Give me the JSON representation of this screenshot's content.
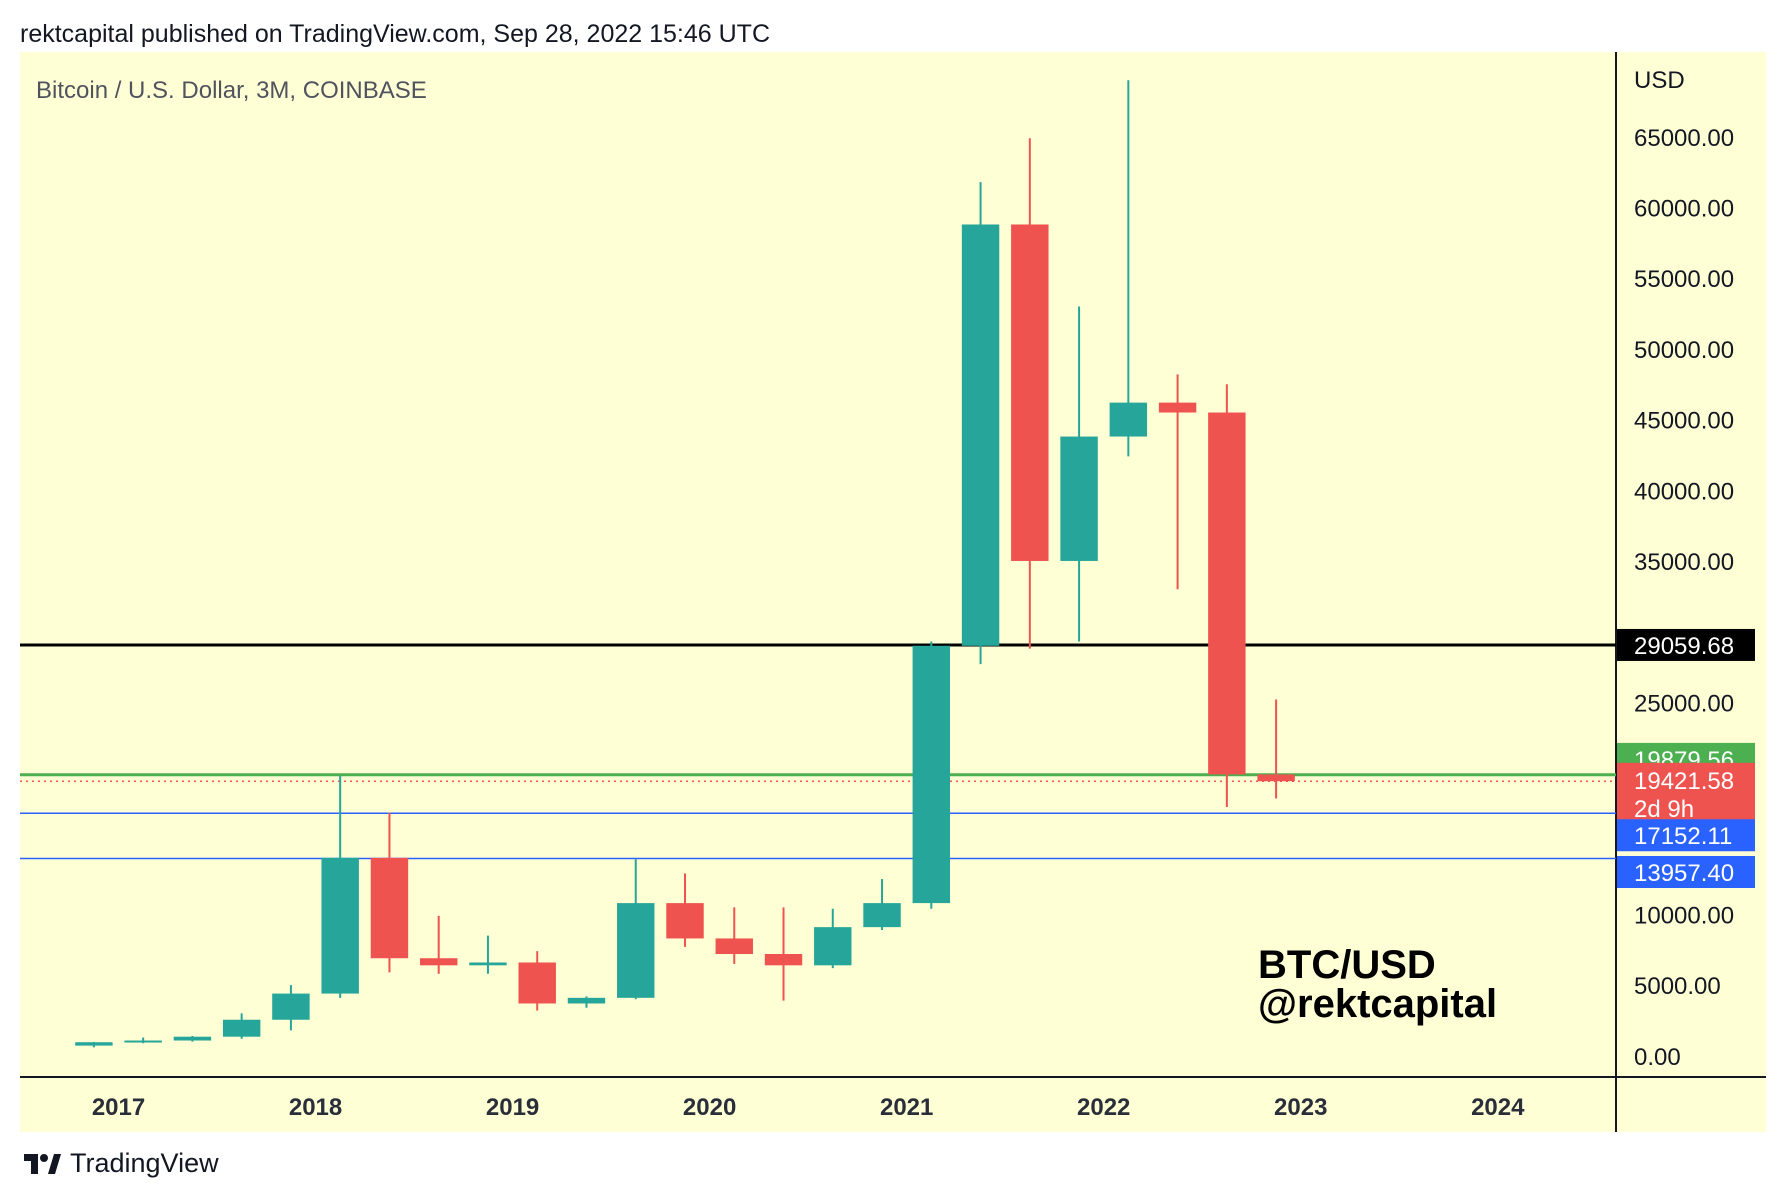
{
  "header": {
    "publish_text": "rektcapital published on TradingView.com, Sep 28, 2022 15:46 UTC"
  },
  "chart": {
    "symbol_title": "Bitcoin / U.S. Dollar, 3M, COINBASE",
    "currency_label": "USD",
    "watermark_line1": "BTC/USD",
    "watermark_line2": "@rektcapital"
  },
  "footer": {
    "brand": "TradingView",
    "logo_icon": "tradingview-logo-icon"
  },
  "colors": {
    "background": "#FFFFD6",
    "up": "#26A69A",
    "down": "#EF5350",
    "black_level": "#000000",
    "green_level": "#4CAF50",
    "blue_level": "#2962FF",
    "last_price_line": "#EF5350"
  },
  "price_labels": {
    "black": "29059.68",
    "green": "19879.56",
    "last": "19421.58",
    "countdown": "2d 9h",
    "blue_upper": "17152.11",
    "blue_lower": "13957.40"
  },
  "chart_data": {
    "type": "candlestick",
    "title": "Bitcoin / U.S. Dollar, 3M, COINBASE",
    "xlabel": "",
    "ylabel": "USD",
    "ylim": [
      -1500,
      71000
    ],
    "grid": false,
    "y_ticks": [
      "0.00",
      "5000.00",
      "10000.00",
      "25000.00",
      "35000.00",
      "40000.00",
      "45000.00",
      "50000.00",
      "55000.00",
      "60000.00",
      "65000.00"
    ],
    "y_tick_values": [
      0,
      5000,
      10000,
      25000,
      35000,
      40000,
      45000,
      50000,
      55000,
      60000,
      65000
    ],
    "x_ticks": [
      "2017",
      "2018",
      "2019",
      "2020",
      "2021",
      "2022",
      "2023",
      "2024"
    ],
    "x_tick_positions": [
      2017.0,
      2018.0,
      2019.0,
      2020.0,
      2021.0,
      2022.0,
      2023.0,
      2024.0
    ],
    "candles": [
      {
        "t": 2016.75,
        "open": 720,
        "high": 980,
        "low": 600,
        "close": 960
      },
      {
        "t": 2017.0,
        "open": 960,
        "high": 1290,
        "low": 890,
        "close": 1080
      },
      {
        "t": 2017.25,
        "open": 1080,
        "high": 1400,
        "low": 1000,
        "close": 1350
      },
      {
        "t": 2017.5,
        "open": 1350,
        "high": 3000,
        "low": 1200,
        "close": 2550
      },
      {
        "t": 2017.75,
        "open": 2550,
        "high": 5000,
        "low": 1800,
        "close": 4400
      },
      {
        "t": 2018.0,
        "open": 4400,
        "high": 19800,
        "low": 4100,
        "close": 14000
      },
      {
        "t": 2018.25,
        "open": 14000,
        "high": 17200,
        "low": 5900,
        "close": 6900
      },
      {
        "t": 2018.5,
        "open": 6900,
        "high": 9900,
        "low": 5800,
        "close": 6400
      },
      {
        "t": 2018.75,
        "open": 6400,
        "high": 8500,
        "low": 5800,
        "close": 6600
      },
      {
        "t": 2019.0,
        "open": 6600,
        "high": 7400,
        "low": 3200,
        "close": 3700
      },
      {
        "t": 2019.25,
        "open": 3700,
        "high": 4200,
        "low": 3400,
        "close": 4100
      },
      {
        "t": 2019.5,
        "open": 4100,
        "high": 13900,
        "low": 4000,
        "close": 10800
      },
      {
        "t": 2019.75,
        "open": 10800,
        "high": 12900,
        "low": 7700,
        "close": 8300
      },
      {
        "t": 2020.0,
        "open": 8300,
        "high": 10500,
        "low": 6500,
        "close": 7200
      },
      {
        "t": 2020.25,
        "open": 7200,
        "high": 10500,
        "low": 3900,
        "close": 6400
      },
      {
        "t": 2020.5,
        "open": 6400,
        "high": 10400,
        "low": 6200,
        "close": 9100
      },
      {
        "t": 2020.75,
        "open": 9100,
        "high": 12500,
        "low": 8900,
        "close": 10800
      },
      {
        "t": 2021.0,
        "open": 10800,
        "high": 29300,
        "low": 10400,
        "close": 29000
      },
      {
        "t": 2021.25,
        "open": 29000,
        "high": 61800,
        "low": 27700,
        "close": 58800
      },
      {
        "t": 2021.5,
        "open": 58800,
        "high": 64900,
        "low": 28800,
        "close": 35000
      },
      {
        "t": 2021.75,
        "open": 35000,
        "high": 53000,
        "low": 29300,
        "close": 43800
      },
      {
        "t": 2022.0,
        "open": 43800,
        "high": 69000,
        "low": 42400,
        "close": 46200
      },
      {
        "t": 2022.25,
        "open": 46200,
        "high": 48200,
        "low": 33000,
        "close": 45500
      },
      {
        "t": 2022.5,
        "open": 45500,
        "high": 47500,
        "low": 17600,
        "close": 19900
      },
      {
        "t": 2022.75,
        "open": 19900,
        "high": 25200,
        "low": 18200,
        "close": 19421.58
      }
    ],
    "horizontal_levels": [
      {
        "value": 29059.68,
        "style": "black-solid"
      },
      {
        "value": 19879.56,
        "style": "green-solid"
      },
      {
        "value": 19421.58,
        "style": "red-dotted-last-price"
      },
      {
        "value": 17152.11,
        "style": "blue-solid"
      },
      {
        "value": 13957.4,
        "style": "blue-solid"
      }
    ],
    "x_range": [
      2016.5,
      2024.6
    ]
  }
}
